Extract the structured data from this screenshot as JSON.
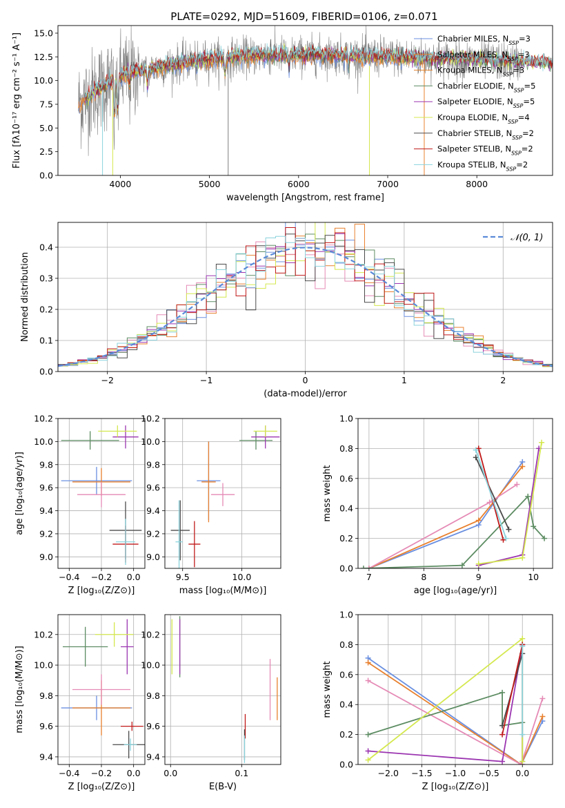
{
  "figure": {
    "title": "PLATE=0292, MJD=51609, FIBERID=0106, z=0.071"
  },
  "colors": {
    "chabrier_miles": "#6a8fe0",
    "salpeter_miles": "#e8802e",
    "kroupa_miles": "#e1812a",
    "chabrier_elodie": "#5c8c62",
    "salpeter_elodie": "#9b35b0",
    "kroupa_elodie": "#d4e84e",
    "chabrier_stelib": "#4a4a4a",
    "salpeter_stelib": "#c01818",
    "kroupa_stelib": "#8ad3dd",
    "pink": "#e58ab5",
    "data": "#7f7f7f",
    "normal": "#5a8ad8"
  },
  "chart_data": [
    {
      "id": "spectrum",
      "type": "line",
      "xlabel": "wavelength [Angstrom, rest frame]",
      "ylabel": "Flux [fλ10⁻¹⁷ erg cm⁻² s⁻¹ A⁻¹]",
      "xlim": [
        3300,
        8850
      ],
      "ylim": [
        0,
        15.8
      ],
      "xticks": [
        "4000",
        "5000",
        "6000",
        "7000",
        "8000"
      ],
      "yticks": [
        "0.0",
        "2.5",
        "5.0",
        "7.5",
        "10.0",
        "12.5",
        "15.0"
      ],
      "legend_position": "right",
      "legend": [
        {
          "name": "Chabrier MILES, N",
          "sub": "SSP",
          "suffix": "=3",
          "color": "#6a8fe0"
        },
        {
          "name": "Salpeter MILES, N",
          "sub": "SSP",
          "suffix": "=3",
          "color": "#e8802e"
        },
        {
          "name": "Kroupa MILES, N",
          "sub": "SSP",
          "suffix": "=3",
          "color": "#e1812a"
        },
        {
          "name": "Chabrier ELODIE, N",
          "sub": "SSP",
          "suffix": "=5",
          "color": "#5c8c62"
        },
        {
          "name": "Salpeter ELODIE, N",
          "sub": "SSP",
          "suffix": "=5",
          "color": "#9b35b0"
        },
        {
          "name": "Kroupa ELODIE, N",
          "sub": "SSP",
          "suffix": "=4",
          "color": "#d4e84e"
        },
        {
          "name": "Chabrier STELIB, N",
          "sub": "SSP",
          "suffix": "=2",
          "color": "#4a4a4a"
        },
        {
          "name": "Salpeter STELIB, N",
          "sub": "SSP",
          "suffix": "=2",
          "color": "#c01818"
        },
        {
          "name": "Kroupa STELIB, N",
          "sub": "SSP",
          "suffix": "=2",
          "color": "#8ad3dd"
        }
      ],
      "data_range_x": [
        3530,
        8850
      ],
      "continuum": [
        [
          3530,
          7.5
        ],
        [
          3700,
          8.8
        ],
        [
          3950,
          10.2
        ],
        [
          4100,
          10.8
        ],
        [
          4400,
          11.3
        ],
        [
          4800,
          12.1
        ],
        [
          5200,
          12.4
        ],
        [
          5600,
          12.7
        ],
        [
          6000,
          12.7
        ],
        [
          6400,
          12.7
        ],
        [
          6800,
          12.6
        ],
        [
          7300,
          12.4
        ],
        [
          7800,
          12.2
        ],
        [
          8300,
          12.0
        ],
        [
          8850,
          11.8
        ]
      ]
    },
    {
      "id": "residuals",
      "type": "histogram",
      "xlabel": "(data-model)/error",
      "ylabel": "Normed distribution",
      "xlim": [
        -2.5,
        2.5
      ],
      "ylim": [
        0,
        0.48
      ],
      "xticks": [
        "−2",
        "−1",
        "0",
        "1",
        "2"
      ],
      "yticks": [
        "0.0",
        "0.1",
        "0.2",
        "0.3",
        "0.4"
      ],
      "legend_label": "𝒩(0, 1)",
      "legend_position": "upper right",
      "bin_width": 0.1,
      "grid": true
    },
    {
      "id": "age_vs_Z",
      "type": "errorbar",
      "xlabel": "Z [log₁₀(Z/Z⊙)]",
      "ylabel": "age  [log₁₀(age/yr)]",
      "xlim": [
        -0.47,
        0.07
      ],
      "ylim": [
        8.9,
        10.2
      ],
      "xticks": [
        "−0.4",
        "−0.2",
        "0.0"
      ],
      "yticks": [
        "9.0",
        "9.2",
        "9.4",
        "9.6",
        "9.8",
        "10.0",
        "10.2"
      ],
      "points": [
        {
          "x": -0.23,
          "y": 9.66,
          "xerr": 0.22,
          "yerr": 0.12,
          "c": "chabrier_miles"
        },
        {
          "x": -0.2,
          "y": 9.65,
          "xerr": 0.18,
          "yerr": 0.12,
          "c": "salpeter_miles"
        },
        {
          "x": -0.27,
          "y": 10.01,
          "xerr": 0.18,
          "yerr": 0.08,
          "c": "chabrier_elodie"
        },
        {
          "x": -0.05,
          "y": 10.04,
          "xerr": 0.08,
          "yerr": 0.1,
          "c": "salpeter_elodie"
        },
        {
          "x": -0.1,
          "y": 10.09,
          "xerr": 0.12,
          "yerr": 0.05,
          "c": "kroupa_elodie"
        },
        {
          "x": -0.05,
          "y": 9.23,
          "xerr": 0.1,
          "yerr": 0.25,
          "c": "chabrier_stelib"
        },
        {
          "x": -0.05,
          "y": 9.11,
          "xerr": 0.08,
          "yerr": 0.16,
          "c": "salpeter_stelib"
        },
        {
          "x": -0.05,
          "y": 9.13,
          "xerr": 0.06,
          "yerr": 0.2,
          "c": "kroupa_stelib"
        },
        {
          "x": -0.2,
          "y": 9.54,
          "xerr": 0.15,
          "yerr": 0.11,
          "c": "pink"
        }
      ]
    },
    {
      "id": "age_vs_mass",
      "type": "errorbar",
      "xlabel": "mass [log₁₀(M/M⊙)]",
      "ylabel": "",
      "xlim": [
        9.35,
        10.33
      ],
      "ylim": [
        8.9,
        10.2
      ],
      "xticks": [
        "9.5",
        "10.0"
      ],
      "yticks": [
        "9.0",
        "9.2",
        "9.4",
        "9.6",
        "9.8",
        "10.0",
        "10.2"
      ],
      "points": [
        {
          "x": 9.72,
          "y": 9.66,
          "xerr": 0.1,
          "yerr": 0.34,
          "c": "chabrier_miles"
        },
        {
          "x": 9.72,
          "y": 9.65,
          "xerr": 0.06,
          "yerr": 0.35,
          "c": "salpeter_miles"
        },
        {
          "x": 10.12,
          "y": 10.01,
          "xerr": 0.14,
          "yerr": 0.08,
          "c": "chabrier_elodie"
        },
        {
          "x": 10.2,
          "y": 10.04,
          "xerr": 0.12,
          "yerr": 0.1,
          "c": "salpeter_elodie"
        },
        {
          "x": 10.2,
          "y": 10.09,
          "xerr": 0.1,
          "yerr": 0.05,
          "c": "kroupa_elodie"
        },
        {
          "x": 9.48,
          "y": 9.23,
          "xerr": 0.08,
          "yerr": 0.26,
          "c": "chabrier_stelib"
        },
        {
          "x": 9.6,
          "y": 9.11,
          "xerr": 0.05,
          "yerr": 0.2,
          "c": "salpeter_stelib"
        },
        {
          "x": 9.47,
          "y": 9.13,
          "xerr": 0.03,
          "yerr": 0.36,
          "c": "kroupa_stelib"
        },
        {
          "x": 9.84,
          "y": 9.54,
          "xerr": 0.1,
          "yerr": 0.1,
          "c": "pink"
        }
      ]
    },
    {
      "id": "weight_vs_age",
      "type": "line",
      "xlabel": "age  [log₁₀(age/yr)]",
      "ylabel": "mass weight",
      "xlim": [
        6.8,
        10.35
      ],
      "ylim": [
        0,
        1.0
      ],
      "xticks": [
        "7",
        "8",
        "9",
        "10"
      ],
      "yticks": [
        "0.0",
        "0.2",
        "0.4",
        "0.6",
        "0.8",
        "1.0"
      ],
      "series": [
        {
          "c": "chabrier_miles",
          "x": [
            7.0,
            9.0,
            9.8
          ],
          "y": [
            0.0,
            0.29,
            0.71
          ]
        },
        {
          "c": "salpeter_miles",
          "x": [
            7.0,
            9.0,
            9.8
          ],
          "y": [
            0.0,
            0.32,
            0.68
          ]
        },
        {
          "c": "pink",
          "x": [
            7.0,
            9.2,
            9.7
          ],
          "y": [
            0.0,
            0.44,
            0.56
          ]
        },
        {
          "c": "chabrier_elodie",
          "x": [
            6.9,
            8.7,
            9.9,
            10.0,
            10.2
          ],
          "y": [
            0.0,
            0.02,
            0.48,
            0.28,
            0.2
          ]
        },
        {
          "c": "salpeter_elodie",
          "x": [
            9.0,
            9.8,
            10.1
          ],
          "y": [
            0.02,
            0.09,
            0.8
          ]
        },
        {
          "c": "kroupa_elodie",
          "x": [
            9.0,
            9.8,
            10.15
          ],
          "y": [
            0.03,
            0.07,
            0.84
          ]
        },
        {
          "c": "chabrier_stelib",
          "x": [
            8.95,
            9.55
          ],
          "y": [
            0.74,
            0.26
          ]
        },
        {
          "c": "salpeter_stelib",
          "x": [
            9.0,
            9.45
          ],
          "y": [
            0.8,
            0.19
          ]
        },
        {
          "c": "kroupa_stelib",
          "x": [
            8.95,
            9.5
          ],
          "y": [
            0.79,
            0.2
          ]
        }
      ]
    },
    {
      "id": "mass_vs_Z",
      "type": "errorbar",
      "xlabel": "Z [log₁₀(Z/Z⊙)]",
      "ylabel": "mass [log₁₀(M/M⊙)]",
      "xlim": [
        -0.47,
        0.07
      ],
      "ylim": [
        9.35,
        10.33
      ],
      "xticks": [
        "−0.4",
        "−0.2",
        "0.0"
      ],
      "yticks": [
        "9.4",
        "9.6",
        "9.8",
        "10.0",
        "10.2"
      ],
      "points": [
        {
          "x": -0.23,
          "y": 9.72,
          "xerr": 0.22,
          "yerr": 0.08,
          "c": "chabrier_miles"
        },
        {
          "x": -0.2,
          "y": 9.72,
          "xerr": 0.18,
          "yerr": 0.18,
          "c": "salpeter_miles"
        },
        {
          "x": -0.3,
          "y": 10.12,
          "xerr": 0.14,
          "yerr": 0.13,
          "c": "chabrier_elodie"
        },
        {
          "x": -0.04,
          "y": 10.12,
          "xerr": 0.04,
          "yerr": 0.18,
          "c": "salpeter_elodie"
        },
        {
          "x": -0.12,
          "y": 10.2,
          "xerr": 0.12,
          "yerr": 0.08,
          "c": "kroupa_elodie"
        },
        {
          "x": -0.03,
          "y": 9.48,
          "xerr": 0.1,
          "yerr": 0.09,
          "c": "chabrier_stelib"
        },
        {
          "x": -0.01,
          "y": 9.6,
          "xerr": 0.07,
          "yerr": 0.03,
          "c": "salpeter_stelib"
        },
        {
          "x": -0.02,
          "y": 9.48,
          "xerr": 0.04,
          "yerr": 0.04,
          "c": "kroupa_stelib"
        },
        {
          "x": -0.2,
          "y": 9.84,
          "xerr": 0.18,
          "yerr": 0.1,
          "c": "pink"
        }
      ]
    },
    {
      "id": "mass_vs_ebv",
      "type": "errorbar",
      "xlabel": "E(B-V)",
      "ylabel": "",
      "xlim": [
        -0.008,
        0.155
      ],
      "ylim": [
        9.35,
        10.33
      ],
      "xticks": [
        "0.0",
        "0.1"
      ],
      "yticks": [
        "9.4",
        "9.6",
        "9.8",
        "10.0",
        "10.2"
      ],
      "points": [
        {
          "x": 0.002,
          "y": 10.12,
          "xerr": 0,
          "yerr": 0.18,
          "c": "kroupa_elodie"
        },
        {
          "x": 0.013,
          "y": 10.12,
          "xerr": 0,
          "yerr": 0.2,
          "c": "chabrier_elodie"
        },
        {
          "x": 0.013,
          "y": 10.12,
          "xerr": 0,
          "yerr": 0.18,
          "c": "salpeter_elodie"
        },
        {
          "x": 0.14,
          "y": 9.84,
          "xerr": 0,
          "yerr": 0.2,
          "c": "pink"
        },
        {
          "x": 0.15,
          "y": 9.78,
          "xerr": 0,
          "yerr": 0.14,
          "c": "salpeter_miles"
        },
        {
          "x": 0.105,
          "y": 9.6,
          "xerr": 0,
          "yerr": 0.08,
          "c": "salpeter_stelib"
        },
        {
          "x": 0.104,
          "y": 9.48,
          "xerr": 0,
          "yerr": 0.1,
          "c": "chabrier_stelib"
        },
        {
          "x": 0.104,
          "y": 9.45,
          "xerr": 0,
          "yerr": 0.09,
          "c": "kroupa_stelib"
        }
      ]
    },
    {
      "id": "weight_vs_Z",
      "type": "line",
      "xlabel": "Z [log₁₀(Z/Z⊙)]",
      "ylabel": "mass weight",
      "xlim": [
        -2.45,
        0.45
      ],
      "ylim": [
        0,
        1.0
      ],
      "xticks": [
        "−2.0",
        "−1.5",
        "−1.0",
        "−0.5",
        "0.0"
      ],
      "yticks": [
        "0.0",
        "0.2",
        "0.4",
        "0.6",
        "0.8",
        "1.0"
      ],
      "series": [
        {
          "c": "chabrier_miles",
          "x": [
            -2.3,
            -0.02,
            0.3
          ],
          "y": [
            0.71,
            0.0,
            0.29
          ]
        },
        {
          "c": "salpeter_miles",
          "x": [
            -2.3,
            -0.02,
            0.3
          ],
          "y": [
            0.68,
            0.0,
            0.32
          ]
        },
        {
          "c": "pink",
          "x": [
            -2.3,
            -0.02,
            0.3
          ],
          "y": [
            0.56,
            0.0,
            0.44
          ]
        },
        {
          "c": "chabrier_elodie",
          "x": [
            -2.3,
            -0.3,
            -0.3,
            0.0,
            0.0
          ],
          "y": [
            0.2,
            0.48,
            0.26,
            0.28,
            0.02
          ]
        },
        {
          "c": "salpeter_elodie",
          "x": [
            -2.3,
            -0.3,
            0.0,
            0.0
          ],
          "y": [
            0.09,
            0.02,
            0.8,
            0.0
          ]
        },
        {
          "c": "kroupa_elodie",
          "x": [
            -2.3,
            0.0,
            0.0
          ],
          "y": [
            0.03,
            0.84,
            0.02
          ]
        },
        {
          "c": "chabrier_stelib",
          "x": [
            -0.3,
            0.0
          ],
          "y": [
            0.26,
            0.74
          ]
        },
        {
          "c": "salpeter_stelib",
          "x": [
            -0.3,
            0.0
          ],
          "y": [
            0.2,
            0.8
          ]
        },
        {
          "c": "kroupa_stelib",
          "x": [
            0.0,
            0.0
          ],
          "y": [
            0.2,
            0.79
          ]
        }
      ]
    }
  ]
}
